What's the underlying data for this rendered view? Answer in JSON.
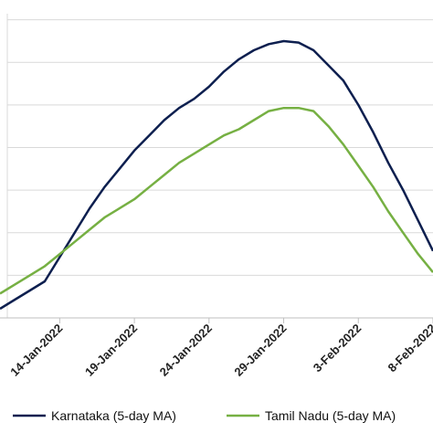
{
  "chart_data": {
    "type": "line",
    "title": "",
    "xlabel": "",
    "ylabel": "",
    "x_ticks": [
      "14-Jan-2022",
      "19-Jan-2022",
      "24-Jan-2022",
      "29-Jan-2022",
      "3-Feb-2022",
      "8-Feb-2022"
    ],
    "y_ticks_shown": false,
    "grid": "horizontal",
    "legend_position": "bottom",
    "x": [
      "2022-01-10",
      "2022-01-11",
      "2022-01-12",
      "2022-01-13",
      "2022-01-14",
      "2022-01-15",
      "2022-01-16",
      "2022-01-17",
      "2022-01-18",
      "2022-01-19",
      "2022-01-20",
      "2022-01-21",
      "2022-01-22",
      "2022-01-23",
      "2022-01-24",
      "2022-01-25",
      "2022-01-26",
      "2022-01-27",
      "2022-01-28",
      "2022-01-29",
      "2022-01-30",
      "2022-01-31",
      "2022-02-01",
      "2022-02-02",
      "2022-02-03",
      "2022-02-04",
      "2022-02-05",
      "2022-02-06",
      "2022-02-07",
      "2022-02-08"
    ],
    "series": [
      {
        "name": "Karnataka (5-day MA)",
        "color": "#0d1f4f",
        "values": [
          0.3,
          0.6,
          0.9,
          1.2,
          2.0,
          2.8,
          3.6,
          4.3,
          4.9,
          5.5,
          6.0,
          6.5,
          6.9,
          7.2,
          7.6,
          8.1,
          8.5,
          8.8,
          9.0,
          9.1,
          9.05,
          8.8,
          8.3,
          7.8,
          7.0,
          6.1,
          5.1,
          4.2,
          3.2,
          2.2
        ]
      },
      {
        "name": "Tamil Nadu (5-day MA)",
        "color": "#76b043",
        "values": [
          0.8,
          1.1,
          1.4,
          1.7,
          2.1,
          2.5,
          2.9,
          3.3,
          3.6,
          3.9,
          4.3,
          4.7,
          5.1,
          5.4,
          5.7,
          6.0,
          6.2,
          6.5,
          6.8,
          6.9,
          6.9,
          6.8,
          6.3,
          5.7,
          5.0,
          4.3,
          3.5,
          2.8,
          2.1,
          1.5
        ]
      }
    ],
    "ylim": [
      0,
      10
    ]
  },
  "legend": [
    {
      "label": "Karnataka (5-day MA)",
      "color": "#0d1f4f"
    },
    {
      "label": "Tamil Nadu (5-day MA)",
      "color": "#76b043"
    }
  ]
}
